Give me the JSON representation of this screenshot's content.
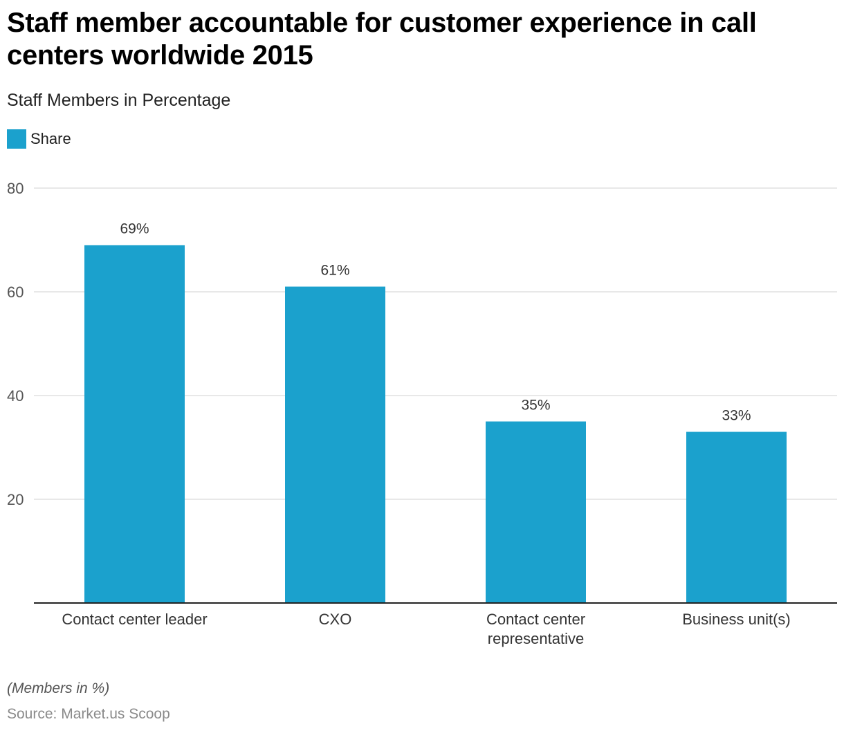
{
  "chart_data": {
    "type": "bar",
    "title": "Staff member accountable for customer experience in call centers worldwide 2015",
    "subtitle": "Staff Members in Percentage",
    "legend": [
      {
        "name": "Share",
        "color": "#1ba1cd"
      }
    ],
    "legend_position": "top-left",
    "categories": [
      "Contact center leader",
      "CXO",
      "Contact center representative",
      "Business unit(s)"
    ],
    "category_label_lines": [
      [
        "Contact center leader"
      ],
      [
        "CXO"
      ],
      [
        "Contact center",
        "representative"
      ],
      [
        "Business unit(s)"
      ]
    ],
    "series": [
      {
        "name": "Share",
        "values": [
          69,
          61,
          35,
          33
        ]
      }
    ],
    "data_labels": [
      "69%",
      "61%",
      "35%",
      "33%"
    ],
    "xlabel": "",
    "ylabel": "",
    "ylim": [
      0,
      80
    ],
    "yticks": [
      20,
      40,
      60,
      80
    ],
    "ytick_labels": [
      "20",
      "40",
      "60",
      "80"
    ],
    "grid": true
  },
  "footer": {
    "note": "(Members in %)",
    "source": "Source: Market.us Scoop"
  },
  "colors": {
    "bar": "#1ba1cd",
    "grid": "#d9d9d9",
    "axis": "#222222",
    "tick_text": "#555555",
    "label_text": "#333333"
  }
}
